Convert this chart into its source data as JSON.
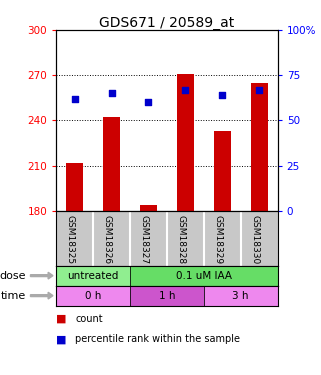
{
  "title": "GDS671 / 20589_at",
  "samples": [
    "GSM18325",
    "GSM18326",
    "GSM18327",
    "GSM18328",
    "GSM18329",
    "GSM18330"
  ],
  "counts": [
    212,
    242,
    184,
    271,
    233,
    265
  ],
  "percentiles": [
    62,
    65,
    60,
    67,
    64,
    67
  ],
  "ymin": 180,
  "ymax": 300,
  "yticks": [
    180,
    210,
    240,
    270,
    300
  ],
  "pmin": 0,
  "pmax": 100,
  "pticks": [
    0,
    25,
    50,
    75,
    100
  ],
  "ptick_labels": [
    "0",
    "25",
    "50",
    "75",
    "100%"
  ],
  "bar_color": "#cc0000",
  "dot_color": "#0000cc",
  "dose_labels": [
    {
      "label": "untreated",
      "span": [
        0,
        2
      ],
      "color": "#90ee90"
    },
    {
      "label": "0.1 uM IAA",
      "span": [
        2,
        6
      ],
      "color": "#66dd66"
    }
  ],
  "time_labels": [
    {
      "label": "0 h",
      "span": [
        0,
        2
      ],
      "color": "#ee88ee"
    },
    {
      "label": "1 h",
      "span": [
        2,
        4
      ],
      "color": "#cc55cc"
    },
    {
      "label": "3 h",
      "span": [
        4,
        6
      ],
      "color": "#ee88ee"
    }
  ],
  "legend_count_label": "count",
  "legend_pct_label": "percentile rank within the sample",
  "xlabel_dose": "dose",
  "xlabel_time": "time",
  "sample_bg": "#c8c8c8",
  "title_fontsize": 10,
  "tick_fontsize": 7.5,
  "bar_width": 0.45
}
